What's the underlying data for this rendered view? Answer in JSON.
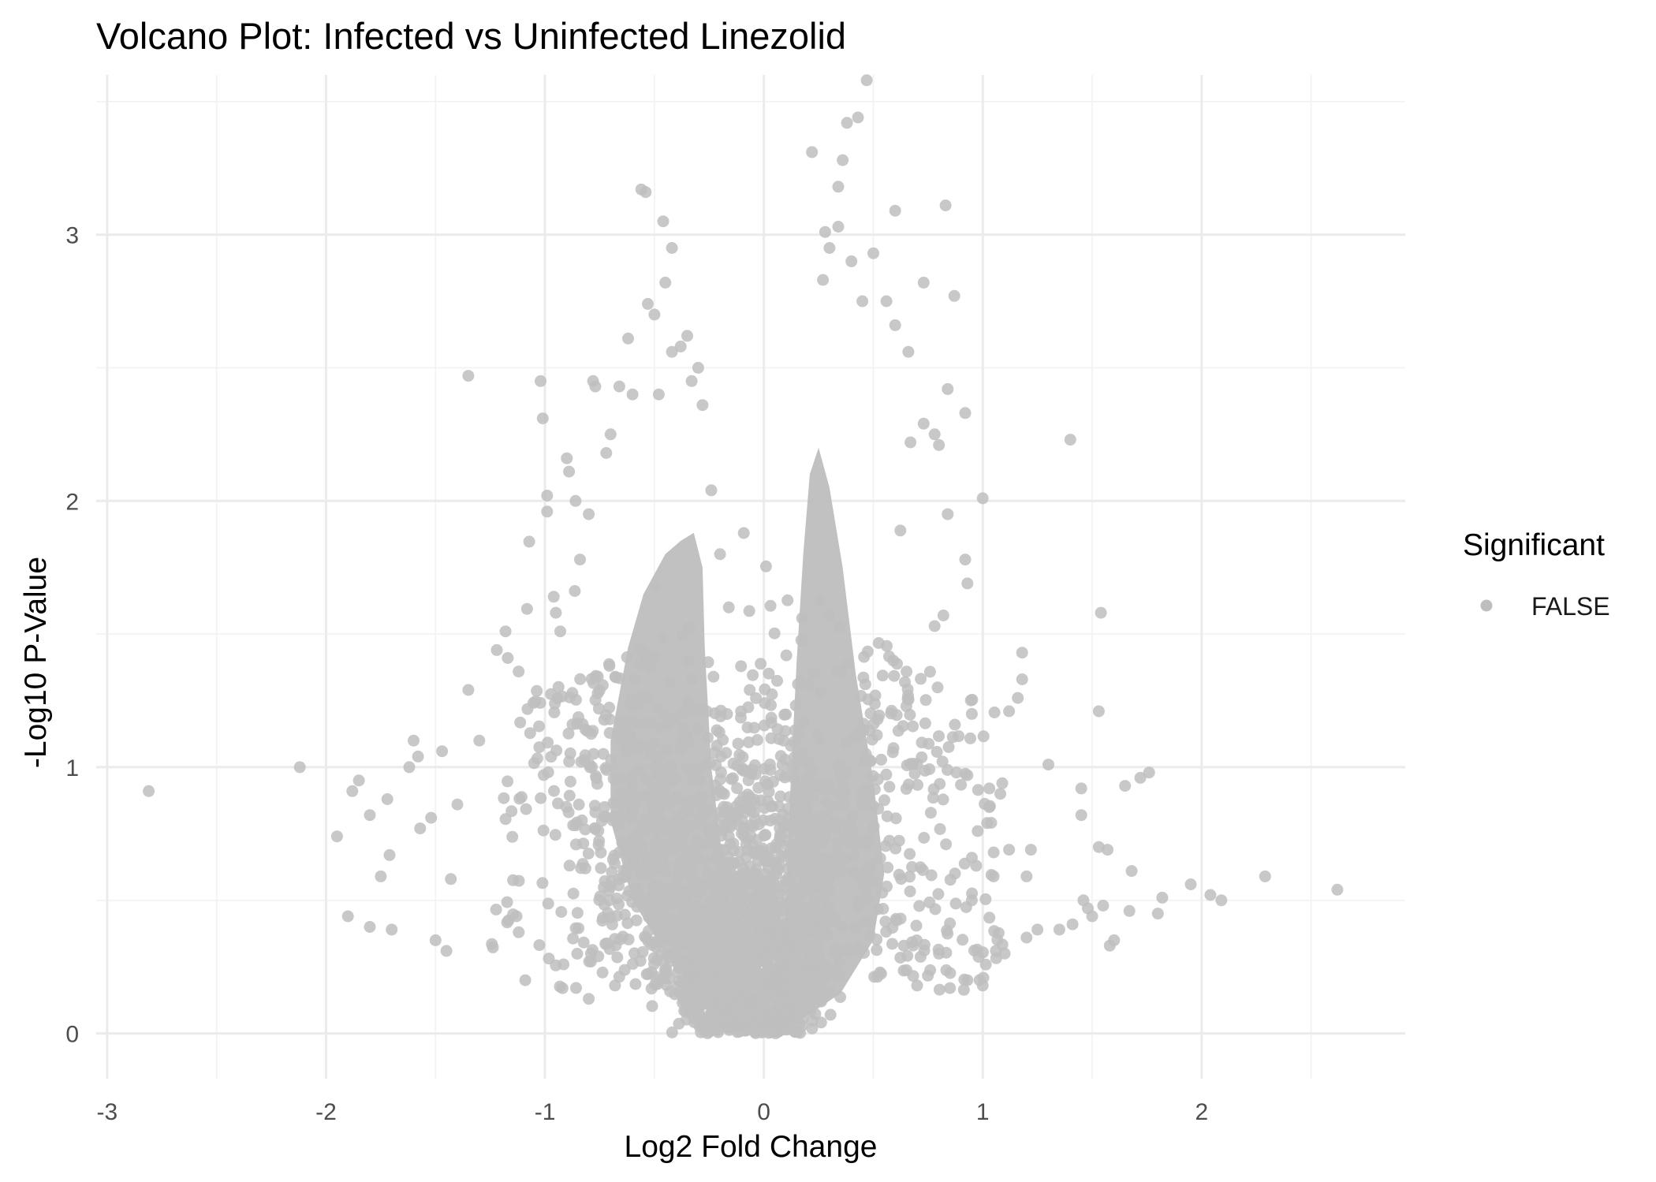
{
  "chart_data": {
    "type": "scatter",
    "title": "Volcano Plot: Infected vs Uninfected Linezolid",
    "xlabel": "Log2 Fold Change",
    "ylabel": "-Log10 P-Value",
    "xlim": [
      -3.05,
      2.93
    ],
    "ylim": [
      -0.17,
      3.6
    ],
    "x_ticks": [
      -3,
      -2,
      -1,
      0,
      1,
      2
    ],
    "x_tick_labels": [
      "-3",
      "-2",
      "-1",
      "0",
      "1",
      "2"
    ],
    "y_ticks": [
      0,
      1,
      2,
      3
    ],
    "y_tick_labels": [
      "0",
      "1",
      "2",
      "3"
    ],
    "x_minor_ticks": [
      -2.5,
      -1.5,
      -0.5,
      0.5,
      1.5,
      2.5
    ],
    "y_minor_ticks": [
      0.5,
      1.5,
      2.5,
      3.5
    ],
    "grid": true,
    "legend": {
      "title": "Significant",
      "position": "right",
      "entries": [
        {
          "label": "FALSE",
          "color": "#bebebe"
        }
      ]
    },
    "point_color": "#bebebe",
    "point_opacity": 0.85,
    "series": [
      {
        "name": "FALSE",
        "points": [
          [
            -2.81,
            0.91
          ],
          [
            -2.12,
            1.0
          ],
          [
            -1.95,
            0.74
          ],
          [
            -1.9,
            0.44
          ],
          [
            -1.88,
            0.91
          ],
          [
            -1.85,
            0.95
          ],
          [
            -1.8,
            0.4
          ],
          [
            -1.8,
            0.82
          ],
          [
            -1.75,
            0.59
          ],
          [
            -1.72,
            0.88
          ],
          [
            -1.7,
            0.39
          ],
          [
            -1.71,
            0.67
          ],
          [
            -1.62,
            1.0
          ],
          [
            -1.6,
            1.1
          ],
          [
            -1.58,
            1.04
          ],
          [
            -1.57,
            0.77
          ],
          [
            -1.52,
            0.81
          ],
          [
            -1.5,
            0.35
          ],
          [
            -1.47,
            1.06
          ],
          [
            -1.45,
            0.31
          ],
          [
            -1.43,
            0.58
          ],
          [
            -1.4,
            0.86
          ],
          [
            -1.35,
            2.47
          ],
          [
            -1.35,
            1.29
          ],
          [
            -1.3,
            1.1
          ],
          [
            -1.22,
            1.44
          ],
          [
            -1.18,
            1.51
          ],
          [
            -1.17,
            1.41
          ],
          [
            -1.13,
            0.44
          ],
          [
            -1.12,
            0.38
          ],
          [
            -1.09,
            0.2
          ],
          [
            -1.02,
            2.45
          ],
          [
            -1.01,
            2.31
          ],
          [
            -0.99,
            2.02
          ],
          [
            -0.99,
            1.96
          ],
          [
            -0.96,
            1.64
          ],
          [
            -0.95,
            1.58
          ],
          [
            -0.93,
            1.51
          ],
          [
            -0.92,
            0.17
          ],
          [
            -0.9,
            2.16
          ],
          [
            -0.89,
            2.11
          ],
          [
            -0.86,
            2.0
          ],
          [
            -0.84,
            1.78
          ],
          [
            -0.8,
            1.95
          ],
          [
            -0.79,
            0.3
          ],
          [
            -0.79,
            0.27
          ],
          [
            -0.8,
            0.13
          ],
          [
            -0.78,
            2.45
          ],
          [
            -0.77,
            2.43
          ],
          [
            -0.72,
            2.18
          ],
          [
            -0.7,
            2.25
          ],
          [
            -0.68,
            0.18
          ],
          [
            -0.66,
            2.43
          ],
          [
            -0.62,
            2.61
          ],
          [
            -0.6,
            2.4
          ],
          [
            -0.56,
            3.17
          ],
          [
            -0.54,
            3.16
          ],
          [
            -0.53,
            2.74
          ],
          [
            -0.5,
            2.7
          ],
          [
            -0.48,
            2.4
          ],
          [
            -0.46,
            3.05
          ],
          [
            -0.45,
            2.82
          ],
          [
            -0.42,
            2.95
          ],
          [
            -0.42,
            2.56
          ],
          [
            -0.38,
            2.58
          ],
          [
            -0.35,
            2.62
          ],
          [
            -0.33,
            2.45
          ],
          [
            -0.3,
            2.5
          ],
          [
            -0.28,
            2.36
          ],
          [
            -0.24,
            2.04
          ],
          [
            -0.2,
            1.8
          ],
          [
            -0.16,
            1.6
          ],
          [
            0.22,
            3.31
          ],
          [
            0.28,
            3.01
          ],
          [
            0.34,
            3.18
          ],
          [
            0.36,
            3.28
          ],
          [
            0.38,
            3.42
          ],
          [
            0.43,
            3.44
          ],
          [
            0.47,
            3.58
          ],
          [
            0.27,
            2.83
          ],
          [
            0.3,
            2.95
          ],
          [
            0.34,
            3.03
          ],
          [
            0.4,
            2.9
          ],
          [
            0.45,
            2.75
          ],
          [
            0.5,
            2.93
          ],
          [
            0.56,
            2.75
          ],
          [
            0.6,
            3.09
          ],
          [
            0.6,
            2.66
          ],
          [
            0.66,
            2.56
          ],
          [
            0.73,
            2.82
          ],
          [
            0.83,
            3.11
          ],
          [
            0.87,
            2.77
          ],
          [
            0.84,
            2.42
          ],
          [
            0.92,
            2.33
          ],
          [
            0.73,
            2.29
          ],
          [
            0.78,
            2.25
          ],
          [
            0.8,
            2.21
          ],
          [
            0.67,
            2.22
          ],
          [
            1.0,
            2.01
          ],
          [
            1.4,
            2.23
          ],
          [
            1.54,
            1.58
          ],
          [
            0.84,
            1.95
          ],
          [
            0.92,
            1.78
          ],
          [
            0.93,
            1.69
          ],
          [
            0.82,
            1.57
          ],
          [
            0.78,
            1.53
          ],
          [
            1.18,
            1.43
          ],
          [
            1.18,
            1.33
          ],
          [
            1.16,
            1.26
          ],
          [
            1.12,
            1.21
          ],
          [
            1.53,
            1.21
          ],
          [
            0.95,
            1.2
          ],
          [
            1.3,
            1.01
          ],
          [
            1.45,
            0.92
          ],
          [
            1.65,
            0.93
          ],
          [
            1.72,
            0.96
          ],
          [
            1.76,
            0.98
          ],
          [
            1.45,
            0.82
          ],
          [
            1.53,
            0.7
          ],
          [
            1.57,
            0.69
          ],
          [
            1.68,
            0.61
          ],
          [
            1.95,
            0.56
          ],
          [
            2.04,
            0.52
          ],
          [
            2.09,
            0.5
          ],
          [
            2.29,
            0.59
          ],
          [
            2.62,
            0.54
          ],
          [
            1.46,
            0.5
          ],
          [
            1.48,
            0.47
          ],
          [
            1.5,
            0.44
          ],
          [
            1.55,
            0.48
          ],
          [
            1.58,
            0.33
          ],
          [
            1.6,
            0.35
          ],
          [
            1.67,
            0.46
          ],
          [
            1.8,
            0.45
          ],
          [
            1.82,
            0.51
          ],
          [
            1.25,
            0.39
          ],
          [
            1.35,
            0.39
          ],
          [
            1.41,
            0.41
          ],
          [
            1.2,
            0.36
          ],
          [
            1.1,
            0.3
          ],
          [
            1.06,
            0.31
          ],
          [
            0.93,
            0.2
          ],
          [
            1.0,
            0.18
          ],
          [
            0.97,
            0.63
          ],
          [
            1.05,
            0.68
          ],
          [
            1.12,
            0.69
          ],
          [
            1.22,
            0.69
          ],
          [
            1.2,
            0.59
          ],
          [
            1.05,
            0.59
          ],
          [
            0.95,
            0.5
          ],
          [
            1.03,
            0.92
          ],
          [
            1.08,
            0.9
          ],
          [
            1.03,
            0.85
          ],
          [
            1.02,
            0.79
          ],
          [
            0.93,
            0.97
          ],
          [
            0.88,
            0.98
          ],
          [
            0.95,
            0.66
          ]
        ]
      }
    ]
  }
}
